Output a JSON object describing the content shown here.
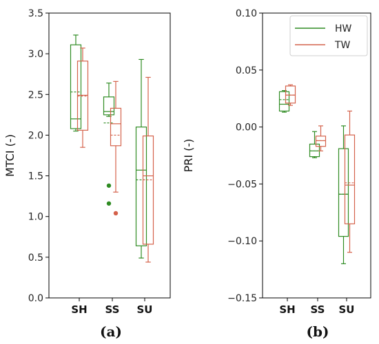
{
  "chart_data": [
    {
      "type": "box",
      "panel_label": "(a)",
      "ylabel": "MTCI (-)",
      "ylim": [
        0.0,
        3.5
      ],
      "yticks": [
        "0.0",
        "0.5",
        "1.0",
        "1.5",
        "2.0",
        "2.5",
        "3.0",
        "3.5"
      ],
      "categories": [
        "SH",
        "SS",
        "SU"
      ],
      "series": [
        {
          "name": "HW",
          "color": "#2e8b22",
          "boxes": [
            {
              "category": "SH",
              "whislo": 2.05,
              "q1": 2.08,
              "med": 2.2,
              "mean": 2.53,
              "q3": 3.11,
              "whishi": 3.23,
              "fliers": []
            },
            {
              "category": "SS",
              "whislo": 2.23,
              "q1": 2.25,
              "med": 2.29,
              "mean": 2.15,
              "q3": 2.47,
              "whishi": 2.64,
              "fliers": [
                1.38,
                1.16
              ]
            },
            {
              "category": "SU",
              "whislo": 0.49,
              "q1": 0.64,
              "med": 1.57,
              "mean": 1.45,
              "q3": 2.1,
              "whishi": 2.93,
              "fliers": []
            }
          ]
        },
        {
          "name": "TW",
          "color": "#d4614a",
          "boxes": [
            {
              "category": "SH",
              "whislo": 1.85,
              "q1": 2.06,
              "med": 2.49,
              "mean": 2.48,
              "q3": 2.91,
              "whishi": 3.07,
              "fliers": []
            },
            {
              "category": "SS",
              "whislo": 1.3,
              "q1": 1.87,
              "med": 2.14,
              "mean": 2.0,
              "q3": 2.33,
              "whishi": 2.66,
              "fliers": [
                1.04
              ]
            },
            {
              "category": "SU",
              "whislo": 0.44,
              "q1": 0.66,
              "med": 1.5,
              "mean": 1.45,
              "q3": 1.99,
              "whishi": 2.71,
              "fliers": []
            }
          ]
        }
      ]
    },
    {
      "type": "box",
      "panel_label": "(b)",
      "ylabel": "PRI (-)",
      "ylim": [
        -0.15,
        0.1
      ],
      "yticks": [
        "−0.15",
        "−0.10",
        "−0.05",
        "0.00",
        "0.05",
        "0.10"
      ],
      "categories": [
        "SH",
        "SS",
        "SU"
      ],
      "legend": {
        "position": "top-right",
        "entries": [
          "HW",
          "TW"
        ]
      },
      "series": [
        {
          "name": "HW",
          "color": "#2e8b22",
          "boxes": [
            {
              "category": "SH",
              "whislo": 0.013,
              "q1": 0.014,
              "med": 0.02,
              "mean": 0.024,
              "q3": 0.031,
              "whishi": 0.032,
              "fliers": []
            },
            {
              "category": "SS",
              "whislo": -0.027,
              "q1": -0.026,
              "med": -0.021,
              "mean": -0.021,
              "q3": -0.015,
              "whishi": -0.004,
              "fliers": []
            },
            {
              "category": "SU",
              "whislo": -0.12,
              "q1": -0.096,
              "med": -0.059,
              "mean": -0.059,
              "q3": -0.019,
              "whishi": 0.001,
              "fliers": []
            }
          ]
        },
        {
          "name": "TW",
          "color": "#d4614a",
          "boxes": [
            {
              "category": "SH",
              "whislo": 0.019,
              "q1": 0.021,
              "med": 0.028,
              "mean": 0.028,
              "q3": 0.036,
              "whishi": 0.037,
              "fliers": []
            },
            {
              "category": "SS",
              "whislo": -0.021,
              "q1": -0.017,
              "med": -0.012,
              "mean": -0.012,
              "q3": -0.008,
              "whishi": 0.001,
              "fliers": []
            },
            {
              "category": "SU",
              "whislo": -0.11,
              "q1": -0.085,
              "med": -0.051,
              "mean": -0.049,
              "q3": -0.007,
              "whishi": 0.014,
              "fliers": []
            }
          ]
        }
      ]
    }
  ]
}
